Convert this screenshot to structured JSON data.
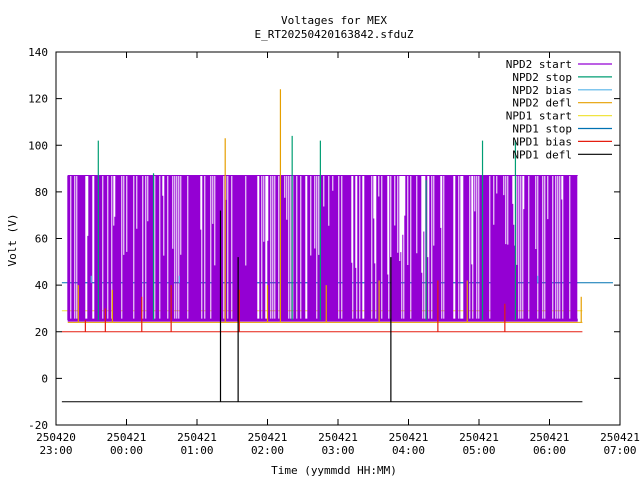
{
  "chart_data": {
    "type": "line",
    "title": "Voltages for MEX",
    "subtitle": "E_RT20250420163842.sfduZ",
    "xlabel": "Time (yymmdd HH:MM)",
    "ylabel": "Volt (V)",
    "ylim": [
      -20,
      140
    ],
    "yticks": [
      -20,
      0,
      20,
      40,
      60,
      80,
      100,
      120,
      140
    ],
    "xlim": [
      "2025-04-20 23:00",
      "2025-04-21 07:00"
    ],
    "xticks": [
      {
        "date": "250420",
        "time": "23:00"
      },
      {
        "date": "250421",
        "time": "00:00"
      },
      {
        "date": "250421",
        "time": "01:00"
      },
      {
        "date": "250421",
        "time": "02:00"
      },
      {
        "date": "250421",
        "time": "03:00"
      },
      {
        "date": "250421",
        "time": "04:00"
      },
      {
        "date": "250421",
        "time": "05:00"
      },
      {
        "date": "250421",
        "time": "06:00"
      },
      {
        "date": "250421",
        "time": "07:00"
      }
    ],
    "legend_position": "top-right",
    "grid": false,
    "series": [
      {
        "name": "NPD2 start",
        "color": "#9400d3",
        "baseline": 25,
        "band": [
          25,
          87
        ],
        "start": "2025-04-20 23:10",
        "end": "2025-04-21 06:24"
      },
      {
        "name": "NPD2 stop",
        "color": "#009e73",
        "baseline": 25,
        "start": "2025-04-20 23:10",
        "end": "2025-04-21 06:24",
        "spikes": [
          {
            "t": "2025-04-20 23:36",
            "v": 102
          },
          {
            "t": "2025-04-21 00:23",
            "v": 88
          },
          {
            "t": "2025-04-21 02:21",
            "v": 104
          },
          {
            "t": "2025-04-21 02:45",
            "v": 102
          },
          {
            "t": "2025-04-21 05:03",
            "v": 102
          },
          {
            "t": "2025-04-21 05:31",
            "v": 102
          },
          {
            "t": "2025-04-21 04:15",
            "v": 85
          }
        ]
      },
      {
        "name": "NPD2 bias",
        "color": "#56b4e9",
        "baseline": 41,
        "start": "2025-04-20 23:10",
        "end": "2025-04-21 06:24",
        "spikes": [
          {
            "t": "2025-04-20 23:30",
            "v": 44
          },
          {
            "t": "2025-04-21 00:45",
            "v": 44
          },
          {
            "t": "2025-04-21 05:50",
            "v": 44
          }
        ]
      },
      {
        "name": "NPD2 defl",
        "color": "#e69f00",
        "baseline": 24,
        "start": "2025-04-20 23:10",
        "end": "2025-04-21 06:28",
        "spikes": [
          {
            "t": "2025-04-20 23:19",
            "v": 40
          },
          {
            "t": "2025-04-20 23:48",
            "v": 38
          },
          {
            "t": "2025-04-21 01:24",
            "v": 103
          },
          {
            "t": "2025-04-21 02:00",
            "v": 40
          },
          {
            "t": "2025-04-21 02:11",
            "v": 124
          },
          {
            "t": "2025-04-21 02:50",
            "v": 40
          },
          {
            "t": "2025-04-21 03:35",
            "v": 42
          },
          {
            "t": "2025-04-21 04:50",
            "v": 42
          },
          {
            "t": "2025-04-21 06:27",
            "v": 35
          }
        ]
      },
      {
        "name": "NPD1 start",
        "color": "#f0e442",
        "baseline": 29,
        "start": "2025-04-20 23:05",
        "end": "2025-04-21 06:28"
      },
      {
        "name": "NPD1 stop",
        "color": "#0072b2",
        "baseline": 41,
        "start": "2025-04-20 23:05",
        "end": "2025-04-21 06:54"
      },
      {
        "name": "NPD1 bias",
        "color": "#e51e10",
        "baseline": 20,
        "start": "2025-04-20 23:05",
        "end": "2025-04-21 06:28",
        "spikes": [
          {
            "t": "2025-04-20 23:25",
            "v": 25
          },
          {
            "t": "2025-04-20 23:42",
            "v": 30
          },
          {
            "t": "2025-04-21 00:13",
            "v": 35
          },
          {
            "t": "2025-04-21 00:38",
            "v": 40
          },
          {
            "t": "2025-04-21 01:36",
            "v": 38
          },
          {
            "t": "2025-04-21 04:25",
            "v": 42
          },
          {
            "t": "2025-04-21 05:22",
            "v": 32
          }
        ]
      },
      {
        "name": "NPD1 defl",
        "color": "#000000",
        "baseline": -10,
        "start": "2025-04-20 23:05",
        "end": "2025-04-21 06:28",
        "spikes": [
          {
            "t": "2025-04-21 01:20",
            "v": 72
          },
          {
            "t": "2025-04-21 01:35",
            "v": 52
          },
          {
            "t": "2025-04-21 03:45",
            "v": 52
          }
        ]
      }
    ]
  }
}
